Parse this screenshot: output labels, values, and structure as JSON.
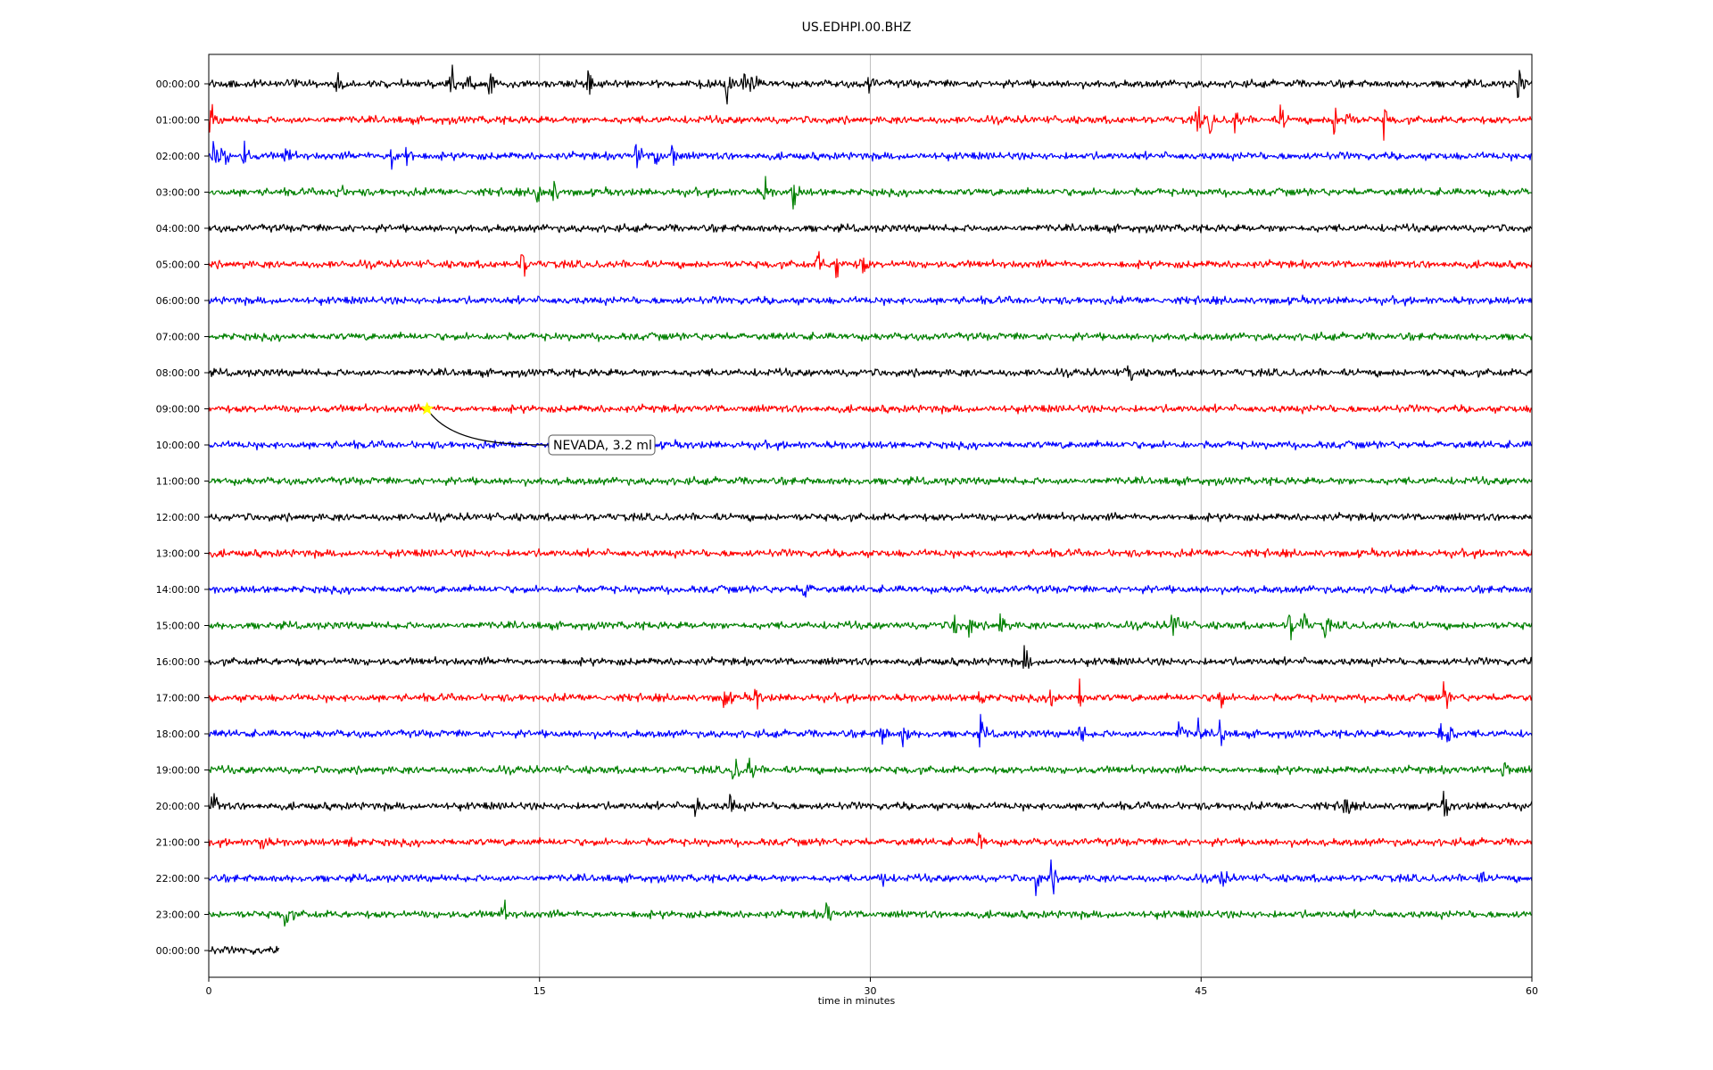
{
  "chart_data": {
    "type": "line",
    "title": "US.EDHPI.00.BHZ",
    "xlabel": "time in minutes",
    "xlim": [
      0,
      60
    ],
    "xticks": [
      "0",
      "15",
      "30",
      "45",
      "60"
    ],
    "grid": "vertical",
    "row_labels": [
      "00:00:00",
      "01:00:00",
      "02:00:00",
      "03:00:00",
      "04:00:00",
      "05:00:00",
      "06:00:00",
      "07:00:00",
      "08:00:00",
      "09:00:00",
      "10:00:00",
      "11:00:00",
      "12:00:00",
      "13:00:00",
      "14:00:00",
      "15:00:00",
      "16:00:00",
      "17:00:00",
      "18:00:00",
      "19:00:00",
      "20:00:00",
      "21:00:00",
      "22:00:00",
      "23:00:00",
      "00:00:00"
    ],
    "row_colors": [
      "#000000",
      "#ff0000",
      "#0000ff",
      "#008000"
    ],
    "partial_last_row_end_min": 3.2,
    "bursts": [
      {
        "row": 0,
        "times": [
          5.8,
          11.0,
          11.8,
          12.7,
          17.2,
          23.5,
          24.2,
          24.6,
          29.9,
          59.4
        ]
      },
      {
        "row": 1,
        "times": [
          0.1,
          44.8,
          45.4,
          46.5,
          48.6,
          51.0,
          51.6,
          53.3
        ]
      },
      {
        "row": 2,
        "times": [
          0.2,
          0.6,
          1.6,
          3.5,
          8.3,
          9.0,
          19.4,
          20.3,
          21.0
        ]
      },
      {
        "row": 3,
        "times": [
          5.8,
          14.9,
          15.6,
          25.2,
          26.5
        ]
      },
      {
        "row": 5,
        "times": [
          14.2,
          27.6,
          28.5,
          29.6
        ]
      },
      {
        "row": 8,
        "times": [
          41.7
        ]
      },
      {
        "row": 14,
        "times": [
          27.0
        ]
      },
      {
        "row": 15,
        "times": [
          33.8,
          34.5,
          35.9,
          43.7,
          43.9,
          49.0,
          49.6,
          50.6
        ]
      },
      {
        "row": 16,
        "times": [
          37.0
        ]
      },
      {
        "row": 17,
        "times": [
          23.4,
          24.8,
          34.9,
          38.2,
          39.5,
          45.8,
          56.0
        ]
      },
      {
        "row": 18,
        "times": [
          30.5,
          31.5,
          35.0,
          39.5,
          44.0,
          44.8,
          45.9,
          55.8,
          56.2
        ]
      },
      {
        "row": 19,
        "times": [
          23.8,
          24.5,
          58.7
        ]
      },
      {
        "row": 20,
        "times": [
          0.2,
          22.1,
          23.6,
          51.5,
          56.0
        ]
      },
      {
        "row": 21,
        "times": [
          2.4,
          6.4,
          34.9
        ]
      },
      {
        "row": 22,
        "times": [
          30.5,
          37.5,
          38.2,
          45.9,
          57.5
        ]
      },
      {
        "row": 23,
        "times": [
          3.5,
          13.3,
          28.0
        ]
      }
    ],
    "event": {
      "row": 9,
      "time_min": 9.9,
      "label": "NEVADA, 3.2 ml",
      "marker_color": "#ffff00"
    }
  }
}
